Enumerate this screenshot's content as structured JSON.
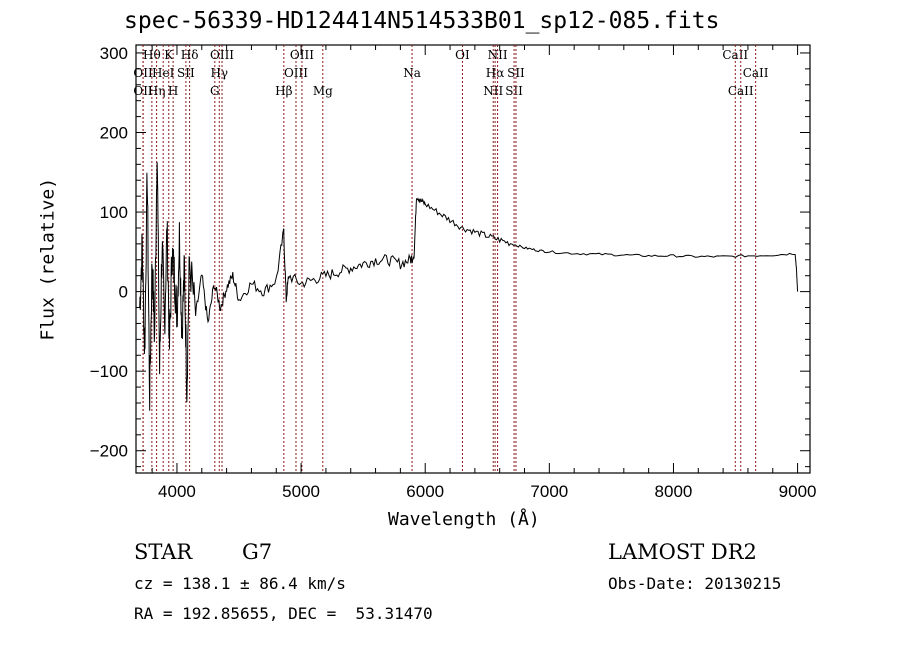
{
  "chart_data": {
    "type": "line",
    "title": "spec-56339-HD124414N514533B01_sp12-085.fits",
    "xlabel": "Wavelength (Å)",
    "ylabel": "Flux (relative)",
    "xlim": [
      3670,
      9100
    ],
    "ylim": [
      -228,
      310
    ],
    "xticks": [
      4000,
      5000,
      6000,
      7000,
      8000,
      9000
    ],
    "xtick_labels": [
      "4000",
      "5000",
      "6000",
      "7000",
      "8000",
      "9000"
    ],
    "yticks": [
      -200,
      -100,
      0,
      100,
      200,
      300
    ],
    "ytick_labels": [
      "−200",
      "−100",
      "0",
      "100",
      "200",
      "300"
    ],
    "series": [
      {
        "name": "spectrum",
        "x": [
          3700,
          3720,
          3740,
          3760,
          3780,
          3800,
          3820,
          3840,
          3860,
          3880,
          3900,
          3920,
          3940,
          3960,
          3980,
          4000,
          4020,
          4040,
          4060,
          4080,
          4100,
          4150,
          4200,
          4250,
          4300,
          4350,
          4400,
          4450,
          4500,
          4600,
          4700,
          4800,
          4860,
          4880,
          4900,
          5000,
          5100,
          5200,
          5300,
          5400,
          5500,
          5600,
          5700,
          5800,
          5880,
          5910,
          5930,
          5960,
          6000,
          6100,
          6200,
          6300,
          6400,
          6500,
          6600,
          6700,
          6800,
          6900,
          7000,
          7200,
          7400,
          7600,
          7800,
          8000,
          8200,
          8400,
          8600,
          8800,
          8980,
          8990,
          9000
        ],
        "y": [
          -20,
          60,
          -80,
          150,
          -130,
          40,
          -60,
          190,
          -100,
          60,
          -40,
          80,
          -70,
          50,
          20,
          -30,
          70,
          -50,
          30,
          -120,
          40,
          -30,
          20,
          -40,
          10,
          -20,
          5,
          20,
          -10,
          10,
          0,
          15,
          75,
          -10,
          20,
          10,
          15,
          20,
          25,
          30,
          35,
          40,
          40,
          35,
          40,
          45,
          120,
          115,
          110,
          100,
          90,
          80,
          75,
          70,
          65,
          60,
          55,
          52,
          50,
          48,
          47,
          46,
          45,
          45,
          44,
          44,
          45,
          46,
          48,
          30,
          0
        ]
      }
    ],
    "lines": [
      {
        "label": "OII",
        "wl": 3727,
        "row": 2
      },
      {
        "label": "OII",
        "wl": 3727,
        "row": 3
      },
      {
        "label": "Hθ",
        "wl": 3798,
        "row": 1
      },
      {
        "label": "Hη",
        "wl": 3836,
        "row": 3
      },
      {
        "label": "HeI",
        "wl": 3889,
        "row": 2
      },
      {
        "label": "K",
        "wl": 3934,
        "row": 1
      },
      {
        "label": "H",
        "wl": 3969,
        "row": 3
      },
      {
        "label": "SII",
        "wl": 4072,
        "row": 2
      },
      {
        "label": "Hδ",
        "wl": 4102,
        "row": 1
      },
      {
        "label": "G",
        "wl": 4305,
        "row": 3
      },
      {
        "label": "Hγ",
        "wl": 4341,
        "row": 2
      },
      {
        "label": "OIII",
        "wl": 4363,
        "row": 1
      },
      {
        "label": "Hβ",
        "wl": 4861,
        "row": 3
      },
      {
        "label": "OIII",
        "wl": 4959,
        "row": 2
      },
      {
        "label": "OIII",
        "wl": 5007,
        "row": 1
      },
      {
        "label": "Mg",
        "wl": 5175,
        "row": 3
      },
      {
        "label": "Na",
        "wl": 5894,
        "row": 2
      },
      {
        "label": "OI",
        "wl": 6300,
        "row": 1
      },
      {
        "label": "NII",
        "wl": 6548,
        "row": 3
      },
      {
        "label": "Hα",
        "wl": 6563,
        "row": 2
      },
      {
        "label": "NII",
        "wl": 6583,
        "row": 1
      },
      {
        "label": "SII",
        "wl": 6716,
        "row": 3
      },
      {
        "label": "SII",
        "wl": 6731,
        "row": 2
      },
      {
        "label": "CaII",
        "wl": 8498,
        "row": 1
      },
      {
        "label": "CaII",
        "wl": 8542,
        "row": 3
      },
      {
        "label": "CaII",
        "wl": 8662,
        "row": 2
      }
    ],
    "line_color": "#8b1a1a"
  },
  "info": {
    "class": "STAR",
    "subclass": "G7",
    "survey": "LAMOST DR2",
    "cz": "cz = 138.1 ± 86.4 km/s",
    "obsdate": "Obs-Date: 20130215",
    "radec": "RA = 192.85655, DEC =  53.31470"
  }
}
